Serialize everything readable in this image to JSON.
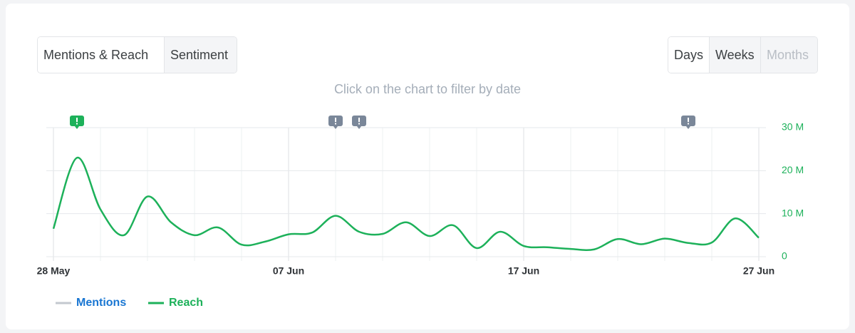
{
  "tabs": [
    "Mentions & Reach",
    "Sentiment"
  ],
  "periods": [
    "Days",
    "Weeks",
    "Months"
  ],
  "hint": "Click on the chart to filter by date",
  "chart_data": {
    "type": "line",
    "categories": [
      "28 May",
      null,
      null,
      null,
      null,
      null,
      null,
      null,
      null,
      null,
      "07 Jun",
      null,
      null,
      null,
      null,
      null,
      null,
      null,
      null,
      null,
      "17 Jun",
      null,
      null,
      null,
      null,
      null,
      null,
      null,
      null,
      null,
      "27 Jun"
    ],
    "series": [
      {
        "name": "Mentions",
        "color": "#c3c8cf",
        "hidden": true,
        "values": [
          null,
          null,
          null,
          null,
          null,
          null,
          null,
          null,
          null,
          null,
          null,
          null,
          null,
          null,
          null,
          null,
          null,
          null,
          null,
          null,
          null,
          null,
          null,
          null,
          null,
          null,
          null,
          null,
          null,
          null,
          null
        ]
      },
      {
        "name": "Reach",
        "color": "#1db15a",
        "axis": "y2",
        "values": [
          6500000,
          23000000,
          11000000,
          5000000,
          14000000,
          8000000,
          5000000,
          6800000,
          2800000,
          3500000,
          5200000,
          5600000,
          9500000,
          5800000,
          5300000,
          8000000,
          4800000,
          7300000,
          2000000,
          5800000,
          2500000,
          2200000,
          1800000,
          1700000,
          4100000,
          2900000,
          4200000,
          3200000,
          3300000,
          8900000,
          4400000
        ]
      }
    ],
    "y2lim": [
      0,
      30000000
    ],
    "y2ticks": [
      0,
      {
        "value": 10000000,
        "label": "10 M"
      },
      {
        "value": 20000000,
        "label": "20 M"
      },
      {
        "value": 30000000,
        "label": "30 M"
      }
    ],
    "grid": true,
    "markers": [
      {
        "category_index": 1,
        "color": "#1db15a"
      },
      {
        "category_index": 12,
        "color": "#7a8799"
      },
      {
        "category_index": 13,
        "color": "#7a8799"
      },
      {
        "category_index": 27,
        "color": "#7a8799"
      }
    ]
  }
}
